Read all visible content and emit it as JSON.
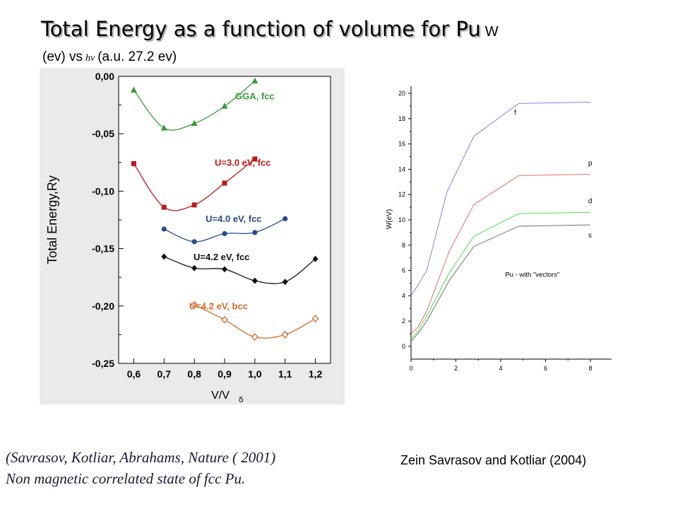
{
  "header": {
    "title": "Total Energy as a function of volume for Pu",
    "title_suffix": "W",
    "subtitle_left": "(ev) vs",
    "subtitle_symbol": "hν",
    "subtitle_right": "(a.u. 27.2 ev)"
  },
  "captions": {
    "left_line1": "(Savrasov, Kotliar, Abrahams,  Nature ( 2001)",
    "left_line2": "Non magnetic correlated state of fcc Pu.",
    "right": "Zein Savrasov and Kotliar (2004)"
  },
  "chart_data": [
    {
      "type": "scatter",
      "title": "",
      "xlabel": "V/V",
      "xlabel_sub": "δ",
      "ylabel": "Total Energy,Ry",
      "xlim": [
        0.55,
        1.25
      ],
      "ylim": [
        -0.25,
        0.0
      ],
      "xticks": [
        "0,6",
        "0,7",
        "0,8",
        "0,9",
        "1,0",
        "1,1",
        "1,2"
      ],
      "xtick_values": [
        0.6,
        0.7,
        0.8,
        0.9,
        1.0,
        1.1,
        1.2
      ],
      "yticks": [
        "0,00",
        "-0,05",
        "-0,10",
        "-0,15",
        "-0,20",
        "-0,25"
      ],
      "ytick_values": [
        0.0,
        -0.05,
        -0.1,
        -0.15,
        -0.2,
        -0.25
      ],
      "series": [
        {
          "name": "GGA, fcc",
          "color": "#3a9a3a",
          "marker": "triangle",
          "x": [
            0.6,
            0.7,
            0.8,
            0.9,
            1.0
          ],
          "y": [
            -0.012,
            -0.045,
            -0.041,
            -0.026,
            -0.004
          ]
        },
        {
          "name": "U=3.0 eV, fcc",
          "color": "#c01818",
          "marker": "square",
          "x": [
            0.6,
            0.7,
            0.8,
            0.9,
            1.0
          ],
          "y": [
            -0.076,
            -0.114,
            -0.112,
            -0.093,
            -0.072
          ]
        },
        {
          "name": "U=4.0 eV, fcc",
          "color": "#2a4a8a",
          "marker": "circle",
          "x": [
            0.7,
            0.8,
            0.9,
            1.0,
            1.1
          ],
          "y": [
            -0.133,
            -0.144,
            -0.137,
            -0.136,
            -0.124
          ]
        },
        {
          "name": "U=4.2 eV, fcc",
          "color": "#111111",
          "marker": "diamond",
          "x": [
            0.7,
            0.8,
            0.9,
            1.0,
            1.1,
            1.2
          ],
          "y": [
            -0.157,
            -0.167,
            -0.168,
            -0.178,
            -0.179,
            -0.159
          ]
        },
        {
          "name": "U=4.2 eV, bcc",
          "color": "#d06a2a",
          "marker": "diamond-open",
          "x": [
            0.8,
            0.9,
            1.0,
            1.1,
            1.2
          ],
          "y": [
            -0.199,
            -0.212,
            -0.227,
            -0.225,
            -0.211
          ]
        }
      ]
    },
    {
      "type": "line",
      "title": "Pu - with \"vectors\"",
      "xlabel": "",
      "ylabel": "W(eV)",
      "xlim": [
        0,
        8
      ],
      "ylim": [
        0,
        20
      ],
      "xticks": [
        0,
        2,
        4,
        6,
        8
      ],
      "yticks": [
        0,
        2,
        4,
        6,
        8,
        10,
        12,
        14,
        16,
        18,
        20
      ],
      "series": [
        {
          "name": "f",
          "color": "#8080e0",
          "x": [
            0,
            0.3,
            0.7,
            1.6,
            2.8,
            4.8,
            8
          ],
          "y": [
            4.0,
            4.8,
            6.0,
            12.2,
            16.6,
            19.2,
            19.3
          ]
        },
        {
          "name": "p",
          "color": "#e07070",
          "x": [
            0,
            0.3,
            0.7,
            1.7,
            2.8,
            4.8,
            8
          ],
          "y": [
            1.0,
            1.5,
            2.8,
            7.5,
            11.2,
            13.5,
            13.6
          ]
        },
        {
          "name": "d",
          "color": "#50e050",
          "x": [
            0,
            0.3,
            0.7,
            1.7,
            2.8,
            4.8,
            8
          ],
          "y": [
            0.6,
            1.2,
            2.4,
            5.8,
            8.7,
            10.5,
            10.6
          ]
        },
        {
          "name": "s",
          "color": "#707070",
          "x": [
            0,
            0.3,
            0.7,
            1.7,
            2.8,
            4.8,
            8
          ],
          "y": [
            0.4,
            1.0,
            2.0,
            5.2,
            7.9,
            9.5,
            9.6
          ]
        }
      ]
    }
  ]
}
